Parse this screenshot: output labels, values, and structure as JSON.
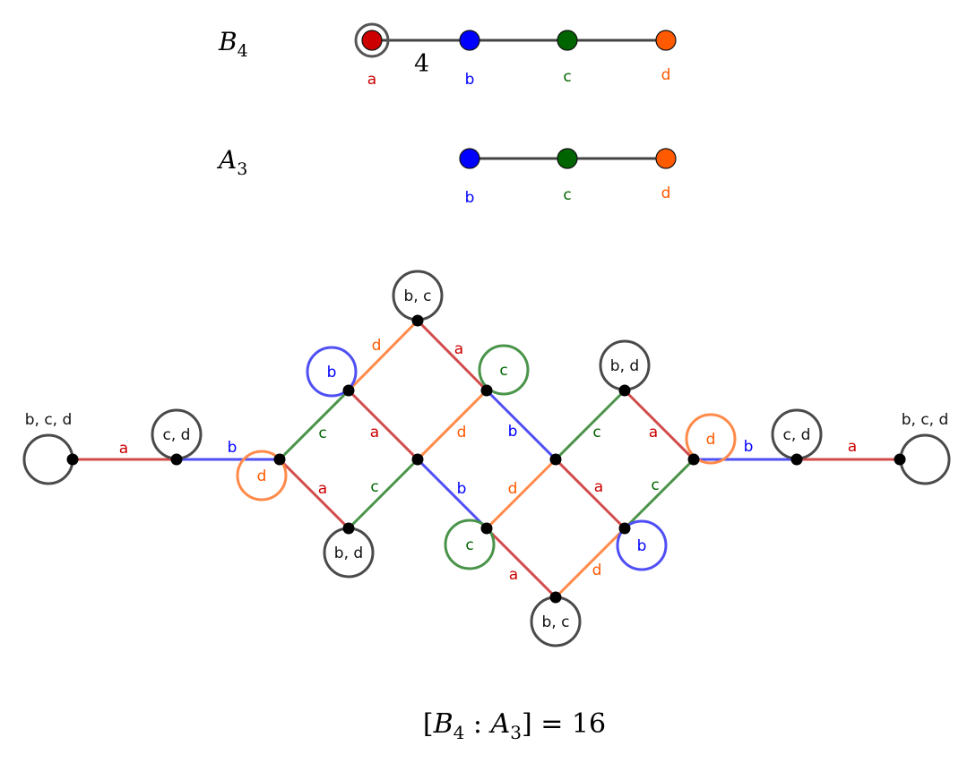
{
  "colors": {
    "a": "#cc0000",
    "b": "#0000ff",
    "c": "#006400",
    "d": "#ff5a00",
    "line": "#444444",
    "edge_a": "#d24b4b",
    "edge_b": "#4f4ff5",
    "edge_c": "#4a944a",
    "edge_d": "#ff8a4a"
  },
  "diagram_b4": {
    "name": "B",
    "sub": "4",
    "nodes": [
      "a",
      "b",
      "c",
      "d"
    ],
    "edge_label": "4",
    "marked_node": "a"
  },
  "diagram_a3": {
    "name": "A",
    "sub": "3",
    "nodes": [
      "b",
      "c",
      "d"
    ]
  },
  "graph": {
    "nodes": [
      "L0",
      "L1",
      "M0",
      "U1",
      "T",
      "M1",
      "D1",
      "U2",
      "M2",
      "D2",
      "B",
      "U3",
      "D3",
      "M3",
      "R1",
      "R0"
    ],
    "edges": [
      {
        "from": "L0",
        "to": "L1",
        "label": "a"
      },
      {
        "from": "L1",
        "to": "M0",
        "label": "b"
      },
      {
        "from": "M0",
        "to": "U1",
        "label": "c"
      },
      {
        "from": "M0",
        "to": "D1",
        "label": "a"
      },
      {
        "from": "U1",
        "to": "T",
        "label": "d"
      },
      {
        "from": "U1",
        "to": "M1",
        "label": "a"
      },
      {
        "from": "T",
        "to": "U2",
        "label": "a"
      },
      {
        "from": "D1",
        "to": "M1",
        "label": "c"
      },
      {
        "from": "M1",
        "to": "U2",
        "label": "d"
      },
      {
        "from": "M1",
        "to": "D2",
        "label": "b"
      },
      {
        "from": "U2",
        "to": "M2",
        "label": "b"
      },
      {
        "from": "D2",
        "to": "M2",
        "label": "d"
      },
      {
        "from": "D2",
        "to": "B",
        "label": "a"
      },
      {
        "from": "M2",
        "to": "U3",
        "label": "c"
      },
      {
        "from": "M2",
        "to": "D3",
        "label": "a"
      },
      {
        "from": "B",
        "to": "D3",
        "label": "d"
      },
      {
        "from": "U3",
        "to": "M3",
        "label": "a"
      },
      {
        "from": "D3",
        "to": "M3",
        "label": "c"
      },
      {
        "from": "M3",
        "to": "R1",
        "label": "b"
      },
      {
        "from": "R1",
        "to": "R0",
        "label": "a"
      }
    ],
    "loops": [
      {
        "node": "L0",
        "label": "b, c, d",
        "color": "line"
      },
      {
        "node": "L1",
        "label": "c, d",
        "color": "line"
      },
      {
        "node": "M0",
        "label": "d",
        "color": "d"
      },
      {
        "node": "U1",
        "label": "b",
        "color": "b"
      },
      {
        "node": "T",
        "label": "b, c",
        "color": "line"
      },
      {
        "node": "U2",
        "label": "c",
        "color": "c"
      },
      {
        "node": "U3",
        "label": "b, d",
        "color": "line"
      },
      {
        "node": "M3",
        "label": "d",
        "color": "d"
      },
      {
        "node": "R1",
        "label": "c, d",
        "color": "line"
      },
      {
        "node": "R0",
        "label": "b, c, d",
        "color": "line"
      },
      {
        "node": "D1",
        "label": "b, d",
        "color": "line"
      },
      {
        "node": "D2",
        "label": "c",
        "color": "c"
      },
      {
        "node": "B",
        "label": "b, c",
        "color": "line"
      },
      {
        "node": "D3",
        "label": "b",
        "color": "b"
      }
    ]
  },
  "formula": {
    "open": "[",
    "b": "B",
    "b_sub": "4",
    "colon": " : ",
    "a": "A",
    "a_sub": "3",
    "close": "] = ",
    "value": "16"
  }
}
